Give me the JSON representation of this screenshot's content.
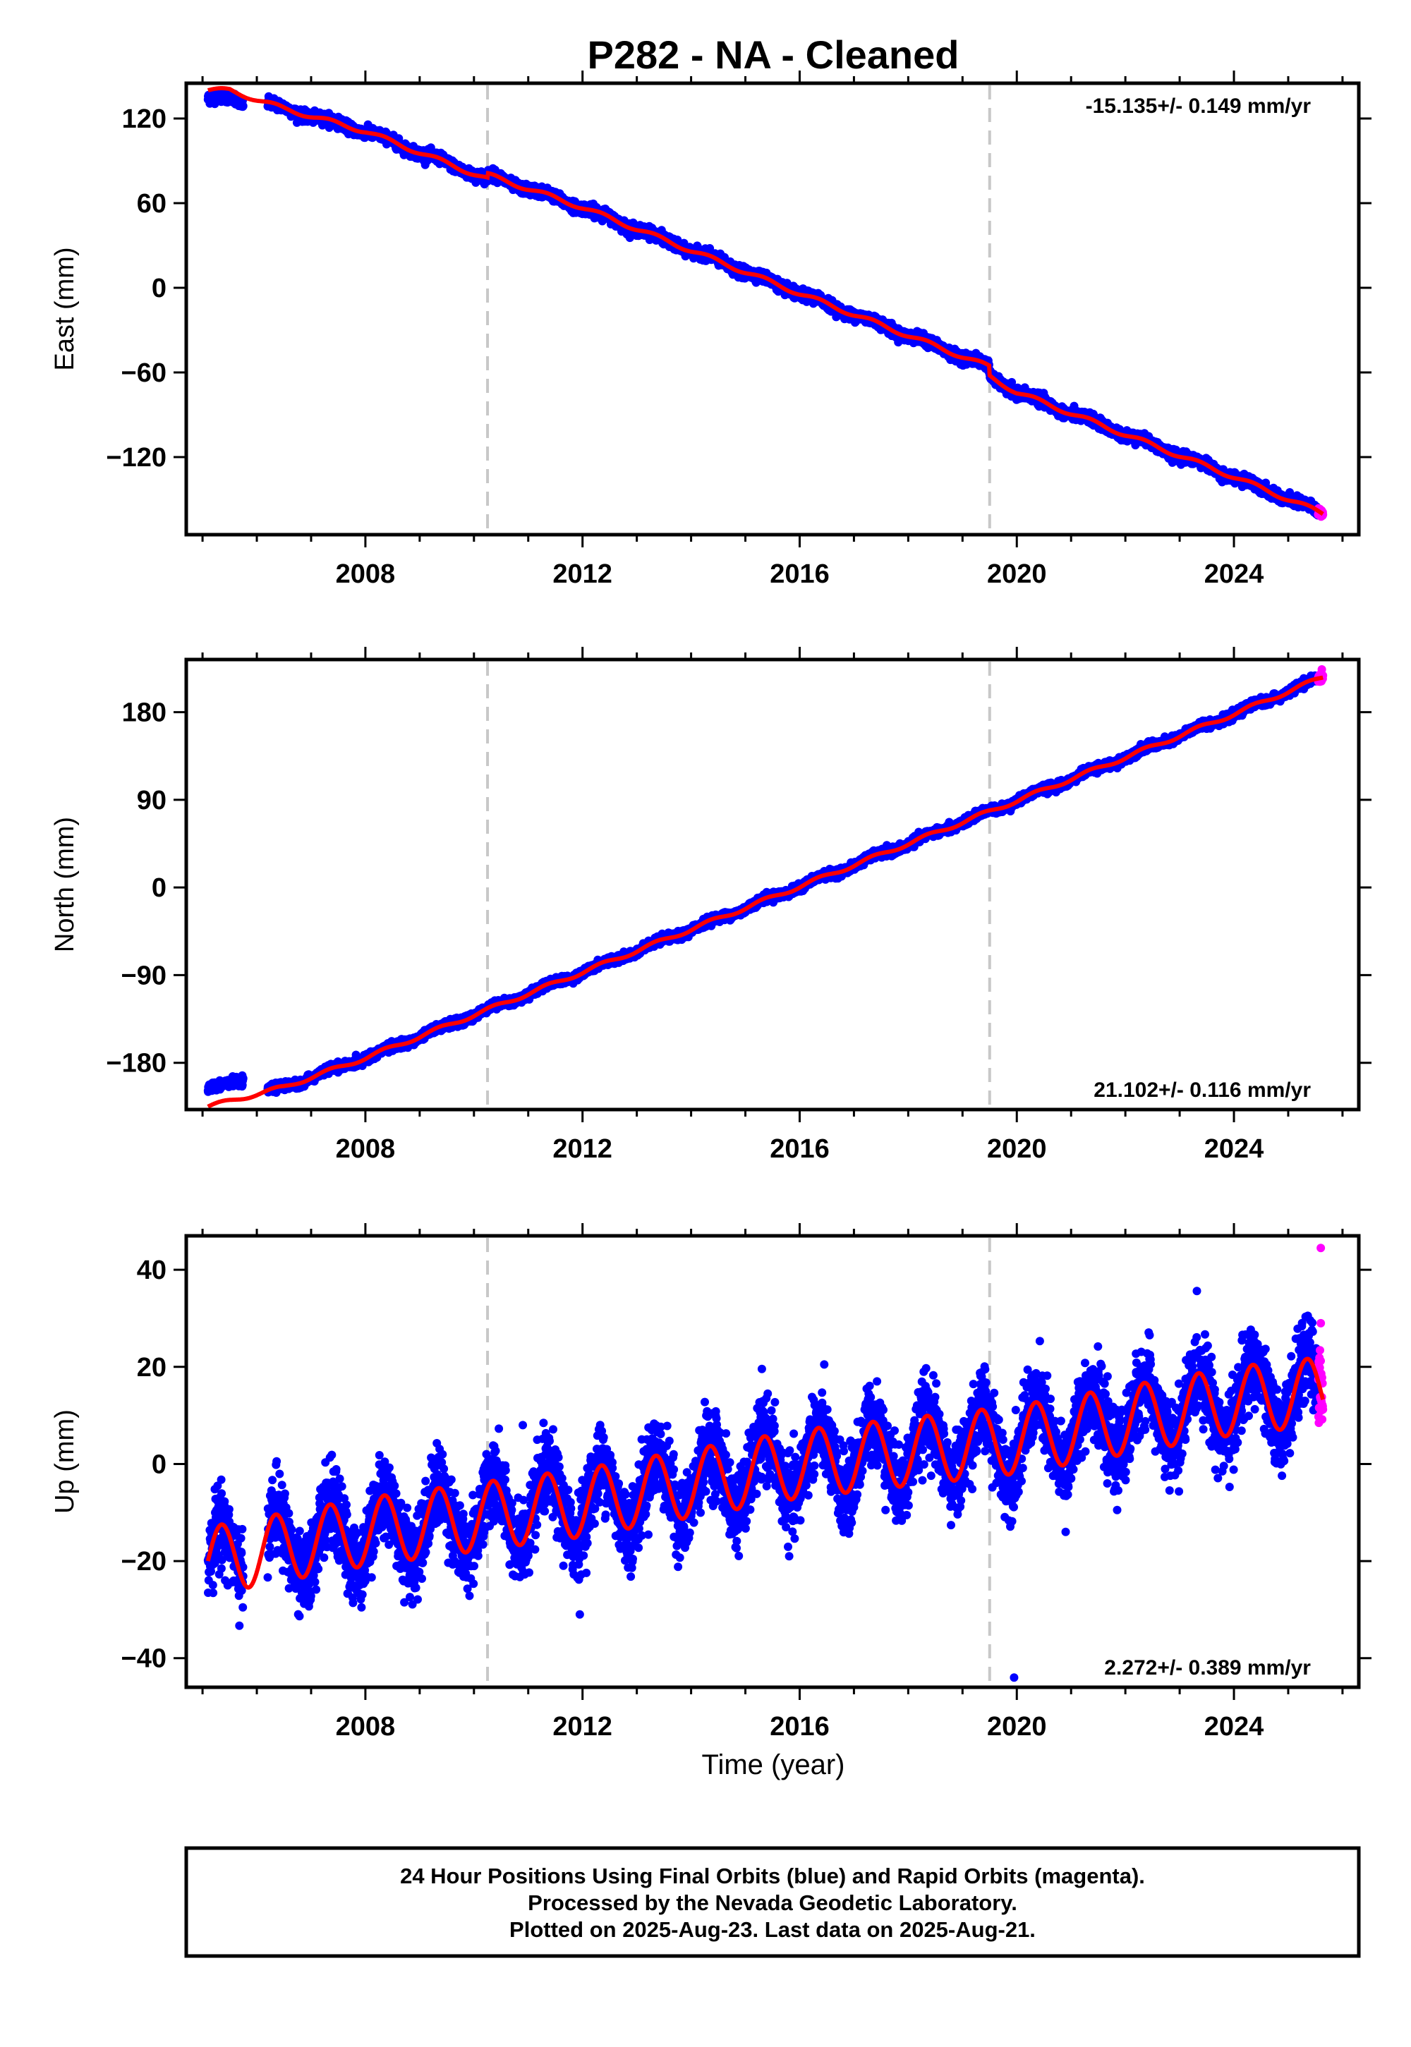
{
  "title": "P282  - NA - Cleaned",
  "xlabel": "Time (year)",
  "colors": {
    "final": "#0000ff",
    "rapid": "#ff00ff",
    "model": "#ff0000",
    "steps": "#c8c8c8",
    "frame": "#000000"
  },
  "footer": {
    "line1": "24 Hour Positions Using Final Orbits (blue) and Rapid Orbits (magenta).",
    "line2": "Processed by the Nevada Geodetic Laboratory.",
    "line3": "Plotted on 2025-Aug-23. Last data on 2025-Aug-21."
  },
  "chart_data": [
    {
      "type": "scatter",
      "component": "East",
      "ylabel": "East (mm)",
      "xlim": [
        2004.7,
        2026.3
      ],
      "ylim": [
        -175,
        145
      ],
      "xticks": [
        2008,
        2012,
        2016,
        2020,
        2024
      ],
      "yticks": [
        -120,
        -60,
        0,
        60,
        120
      ],
      "rate_label": "-15.135+/- 0.149 mm/yr",
      "rate_position": "top-right",
      "steps": [
        2010.25,
        2019.5
      ],
      "data_start": 2005.1,
      "data_gap": [
        2005.75,
        2006.2
      ],
      "rapid_start": 2025.55,
      "data_end": 2025.64,
      "noise_sd": 1.8,
      "seasonal_amplitude": 1.5,
      "model": [
        [
          2005.5,
          140
        ],
        [
          2006.5,
          127
        ],
        [
          2008.0,
          111
        ],
        [
          2010.25,
          77
        ],
        [
          2010.26,
          80
        ],
        [
          2012.0,
          57
        ],
        [
          2016.0,
          -4
        ],
        [
          2019.49,
          -56
        ],
        [
          2019.5,
          -63
        ],
        [
          2020.0,
          -74
        ],
        [
          2024.0,
          -134
        ],
        [
          2025.64,
          -160
        ]
      ]
    },
    {
      "type": "scatter",
      "component": "North",
      "ylabel": "North (mm)",
      "xlim": [
        2004.7,
        2026.3
      ],
      "ylim": [
        -228,
        234
      ],
      "xticks": [
        2008,
        2012,
        2016,
        2020,
        2024
      ],
      "yticks": [
        -180,
        -90,
        0,
        90,
        180
      ],
      "rate_label": "21.102+/- 0.116 mm/yr",
      "rate_position": "bottom-right",
      "steps": [
        2010.25,
        2019.5
      ],
      "data_start": 2005.1,
      "data_gap": [
        2005.75,
        2006.2
      ],
      "rapid_start": 2025.55,
      "data_end": 2025.64,
      "noise_sd": 2.0,
      "seasonal_amplitude": 2.0,
      "model": [
        [
          2005.1,
          -225
        ],
        [
          2006.5,
          -205
        ],
        [
          2008.0,
          -175
        ],
        [
          2012.0,
          -87
        ],
        [
          2016.0,
          1
        ],
        [
          2020.0,
          89
        ],
        [
          2024.0,
          178
        ],
        [
          2025.64,
          216
        ]
      ]
    },
    {
      "type": "scatter",
      "component": "Up",
      "ylabel": "Up (mm)",
      "xlim": [
        2004.7,
        2026.3
      ],
      "ylim": [
        -46,
        47
      ],
      "xticks": [
        2008,
        2012,
        2016,
        2020,
        2024
      ],
      "yticks": [
        -40,
        -20,
        0,
        20,
        40
      ],
      "rate_label": "2.272+/- 0.389 mm/yr",
      "rate_position": "bottom-right",
      "steps": [
        2010.25,
        2019.5
      ],
      "data_start": 2005.1,
      "data_gap": [
        2005.75,
        2006.2
      ],
      "rapid_start": 2025.55,
      "data_end": 2025.64,
      "noise_sd": 4.0,
      "seasonal_amplitude": 7.0,
      "model": [
        [
          2005.1,
          -20
        ],
        [
          2008.0,
          -14
        ],
        [
          2012.0,
          -8
        ],
        [
          2016.0,
          0
        ],
        [
          2020.0,
          5
        ],
        [
          2024.0,
          13
        ],
        [
          2025.64,
          15
        ]
      ],
      "outliers": [
        [
          2019.95,
          -44
        ],
        [
          2020.9,
          -14
        ],
        [
          2011.95,
          -31
        ],
        [
          2025.6,
          44.5
        ],
        [
          2025.6,
          29
        ],
        [
          2010.9,
          8
        ]
      ]
    }
  ]
}
